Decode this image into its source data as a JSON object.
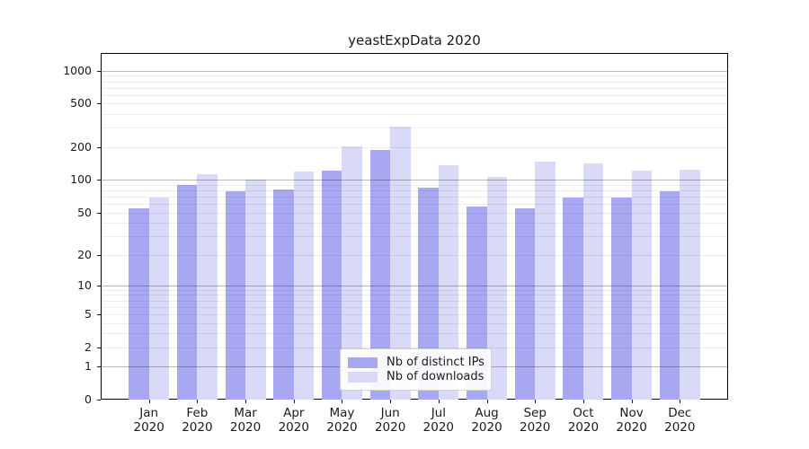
{
  "chart_data": {
    "type": "bar",
    "title": "yeastExpData 2020",
    "xlabel": "",
    "ylabel": "",
    "categories": [
      "Jan",
      "Feb",
      "Mar",
      "Apr",
      "May",
      "Jun",
      "Jul",
      "Aug",
      "Sep",
      "Oct",
      "Nov",
      "Dec"
    ],
    "year_label": "2020",
    "series": [
      {
        "name": "Nb of distinct IPs",
        "color": "#a8a8f2",
        "values": [
          55,
          90,
          78,
          81,
          122,
          190,
          84,
          57,
          55,
          68,
          69,
          78
        ]
      },
      {
        "name": "Nb of downloads",
        "color": "#d9d9f8",
        "values": [
          68,
          112,
          100,
          119,
          203,
          310,
          137,
          107,
          148,
          141,
          121,
          124
        ]
      }
    ],
    "y_axis": {
      "scale": "log1p",
      "tick_labels": [
        0,
        1,
        2,
        5,
        10,
        20,
        50,
        100,
        200,
        500,
        1000
      ],
      "major_gridlines": [
        1,
        10,
        100,
        1000
      ],
      "minor_gridlines": [
        2,
        3,
        4,
        5,
        6,
        7,
        8,
        9,
        20,
        30,
        40,
        50,
        60,
        70,
        80,
        90,
        200,
        300,
        400,
        500,
        600,
        700,
        800,
        900
      ],
      "ylim": [
        0,
        1450
      ]
    },
    "legend": {
      "position": "lower-center"
    },
    "colors": {
      "background": "#ffffff",
      "axis": "#000000",
      "text": "#1a1a1a",
      "gridline_major": "#b8b8b8",
      "gridline_minor": "#ececec"
    }
  }
}
